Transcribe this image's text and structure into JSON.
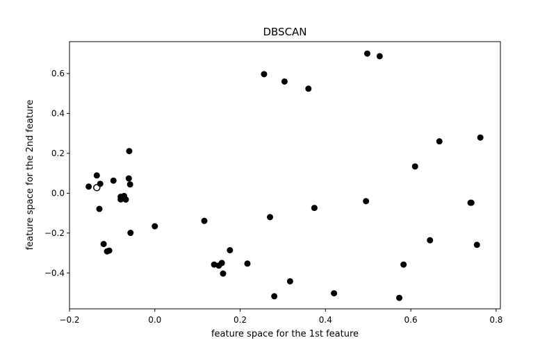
{
  "chart_data": {
    "type": "scatter",
    "title": "DBSCAN",
    "xlabel": "feature space for the 1st feature",
    "ylabel": "feature space for the 2nd feature",
    "xlim": [
      -0.2,
      0.81
    ],
    "ylim": [
      -0.58,
      0.76
    ],
    "xticks": [
      -0.2,
      0.0,
      0.2,
      0.4,
      0.6,
      0.8
    ],
    "xtick_labels": [
      "−0.2",
      "0.0",
      "0.2",
      "0.4",
      "0.6",
      "0.8"
    ],
    "yticks": [
      -0.4,
      -0.2,
      0.0,
      0.2,
      0.4,
      0.6
    ],
    "ytick_labels": [
      "−0.4",
      "−0.2",
      "0.0",
      "0.2",
      "0.4",
      "0.6"
    ],
    "grid": false,
    "legend": "none",
    "marker_color": "#000000",
    "points": [
      {
        "x": -0.155,
        "y": 0.033
      },
      {
        "x": -0.136,
        "y": 0.089
      },
      {
        "x": -0.136,
        "y": 0.028,
        "hollow": true
      },
      {
        "x": -0.128,
        "y": 0.047
      },
      {
        "x": -0.13,
        "y": -0.079
      },
      {
        "x": -0.12,
        "y": -0.255
      },
      {
        "x": -0.112,
        "y": -0.292
      },
      {
        "x": -0.107,
        "y": -0.288
      },
      {
        "x": -0.097,
        "y": 0.063
      },
      {
        "x": -0.08,
        "y": -0.018
      },
      {
        "x": -0.08,
        "y": -0.031
      },
      {
        "x": -0.072,
        "y": -0.014
      },
      {
        "x": -0.068,
        "y": -0.032
      },
      {
        "x": -0.06,
        "y": 0.211
      },
      {
        "x": -0.061,
        "y": 0.074
      },
      {
        "x": -0.058,
        "y": 0.044
      },
      {
        "x": -0.057,
        "y": -0.199
      },
      {
        "x": 0.0,
        "y": -0.166
      },
      {
        "x": 0.116,
        "y": -0.139
      },
      {
        "x": 0.139,
        "y": -0.358
      },
      {
        "x": 0.15,
        "y": -0.363
      },
      {
        "x": 0.157,
        "y": -0.35
      },
      {
        "x": 0.16,
        "y": -0.403
      },
      {
        "x": 0.176,
        "y": -0.286
      },
      {
        "x": 0.217,
        "y": -0.353
      },
      {
        "x": 0.256,
        "y": 0.597
      },
      {
        "x": 0.27,
        "y": -0.12
      },
      {
        "x": 0.28,
        "y": -0.517
      },
      {
        "x": 0.304,
        "y": 0.56
      },
      {
        "x": 0.317,
        "y": -0.442
      },
      {
        "x": 0.36,
        "y": 0.524
      },
      {
        "x": 0.374,
        "y": -0.074
      },
      {
        "x": 0.42,
        "y": -0.502
      },
      {
        "x": 0.495,
        "y": -0.04
      },
      {
        "x": 0.498,
        "y": 0.7
      },
      {
        "x": 0.527,
        "y": 0.687
      },
      {
        "x": 0.573,
        "y": -0.525
      },
      {
        "x": 0.583,
        "y": -0.358
      },
      {
        "x": 0.61,
        "y": 0.134
      },
      {
        "x": 0.645,
        "y": -0.236
      },
      {
        "x": 0.667,
        "y": 0.26
      },
      {
        "x": 0.74,
        "y": -0.048
      },
      {
        "x": 0.742,
        "y": -0.048
      },
      {
        "x": 0.755,
        "y": -0.259
      },
      {
        "x": 0.763,
        "y": 0.279
      }
    ]
  }
}
